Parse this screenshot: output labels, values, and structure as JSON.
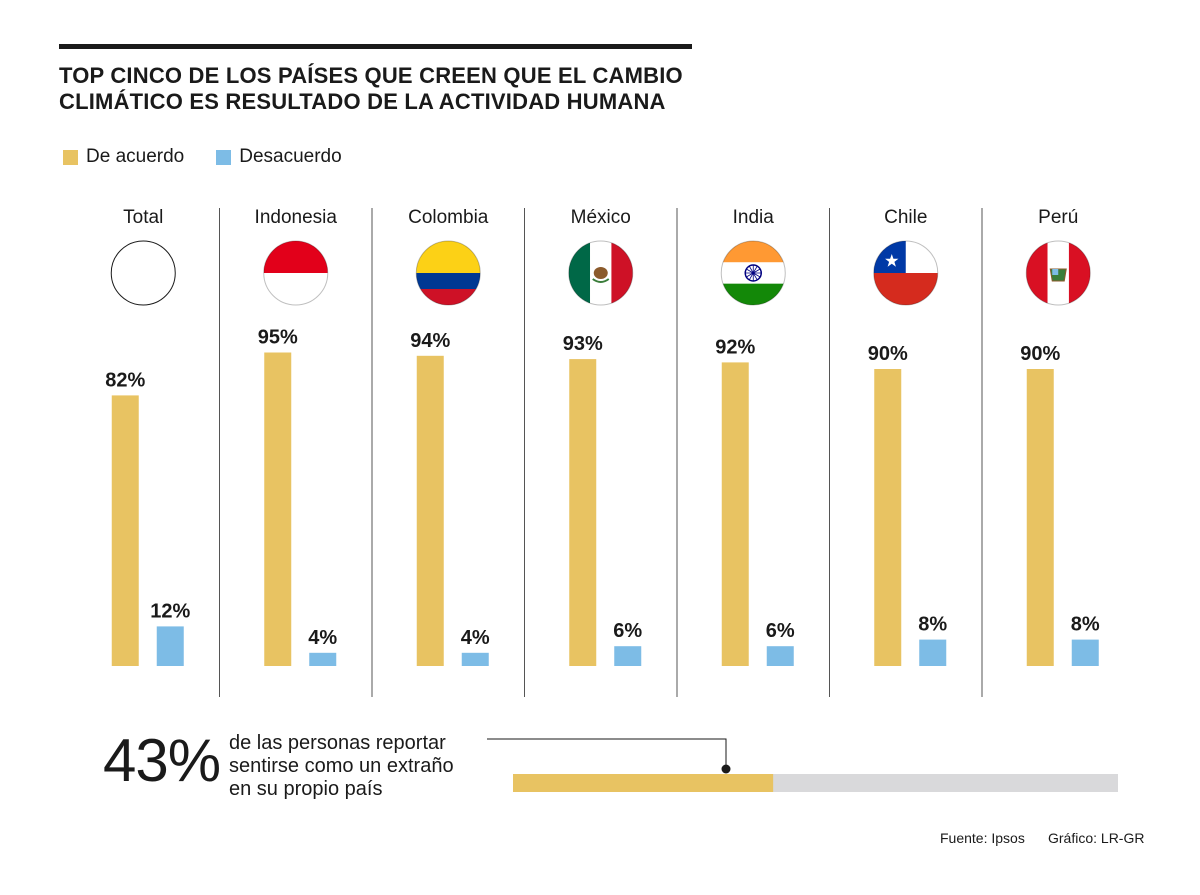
{
  "title_lines": [
    "TOP CINCO DE LOS PAÍSES QUE CREEN QUE EL CAMBIO",
    "CLIMÁTICO ES RESULTADO DE LA ACTIVIDAD HUMANA"
  ],
  "legend": {
    "agree": "De acuerdo",
    "disagree": "Desacuerdo"
  },
  "colors": {
    "agree": "#E8C362",
    "disagree": "#7DBCE6",
    "track": "#D9D9DB",
    "divider": "#555555"
  },
  "chart_data": {
    "type": "bar",
    "categories": [
      "Total",
      "Indonesia",
      "Colombia",
      "México",
      "India",
      "Chile",
      "Perú"
    ],
    "series": [
      {
        "name": "De acuerdo",
        "values": [
          82,
          95,
          94,
          93,
          92,
          90,
          90
        ],
        "labels": [
          "82%",
          "95%",
          "94%",
          "93%",
          "92%",
          "90%",
          "90%"
        ]
      },
      {
        "name": "Desacuerdo",
        "values": [
          12,
          4,
          4,
          6,
          6,
          8,
          8
        ],
        "labels": [
          "12%",
          "4%",
          "4%",
          "6%",
          "6%",
          "8%",
          "8%"
        ]
      }
    ],
    "flag_icons": [
      "blank-circle-icon",
      "indonesia-flag-icon",
      "colombia-flag-icon",
      "mexico-flag-icon",
      "india-flag-icon",
      "chile-flag-icon",
      "peru-flag-icon"
    ],
    "grid": false,
    "legend_position": "top-left"
  },
  "highlight": {
    "value": "43%",
    "fraction": 0.43,
    "text_lines": [
      "de las personas reportar",
      "sentirse como un extraño",
      "en su propio país"
    ]
  },
  "footer": {
    "source": "Fuente: Ipsos",
    "credit": "Gráfico: LR-GR"
  }
}
